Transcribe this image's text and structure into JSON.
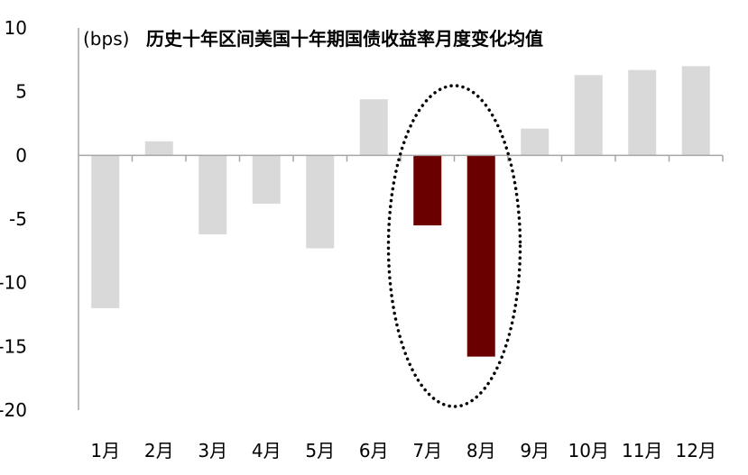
{
  "chart_data": {
    "type": "bar",
    "unit": "(bps)",
    "title": "历史十年区间美国十年期国债收益率月度变化均值",
    "categories": [
      "1月",
      "2月",
      "3月",
      "4月",
      "5月",
      "6月",
      "7月",
      "8月",
      "9月",
      "10月",
      "11月",
      "12月"
    ],
    "values": [
      -12.0,
      1.1,
      -6.2,
      -3.8,
      -7.3,
      4.4,
      -5.5,
      -15.8,
      2.1,
      6.3,
      6.7,
      7.0
    ],
    "highlight_indices": [
      6,
      7
    ],
    "highlight_annotation": "dotted-ellipse",
    "ylim": [
      -20,
      10
    ],
    "yticks": [
      10,
      5,
      0,
      -5,
      -10,
      -15,
      -20
    ],
    "grid": false,
    "colors": {
      "default_bar": "#d9d9d9",
      "highlight_bar": "#6b0000",
      "axis": "#a6a6a6"
    }
  }
}
